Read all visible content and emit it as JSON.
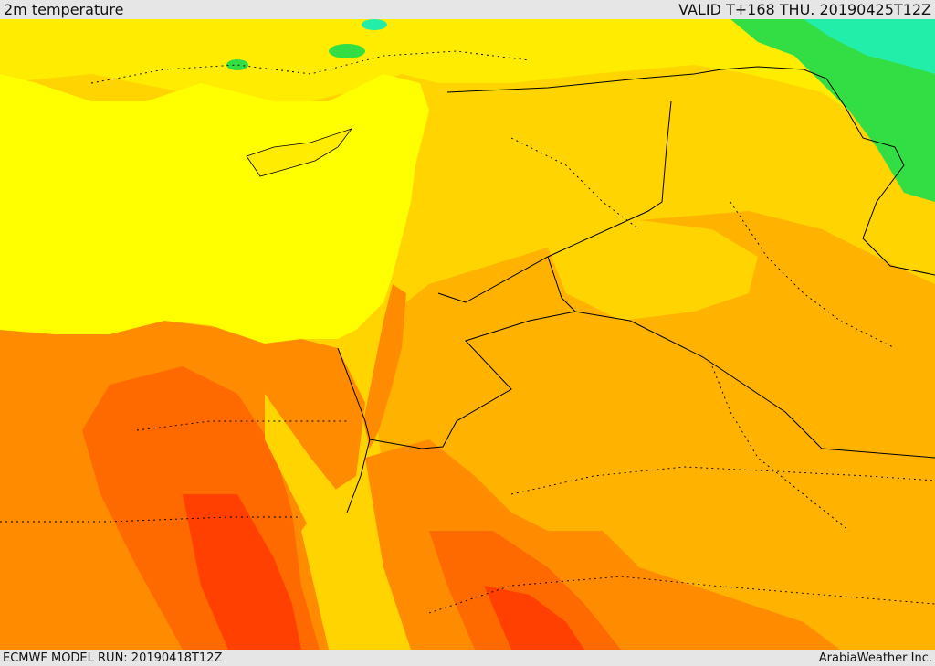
{
  "header": {
    "title": "2m temperature",
    "valid": "VALID T+168 THU. 20190425T12Z"
  },
  "footer": {
    "run": "ECMWF MODEL RUN: 20190418T12Z",
    "credit": "ArabiaWeather Inc."
  },
  "palette": {
    "sea_yellow": "#ffff00",
    "light_yellow": "#ffec00",
    "gold": "#ffd400",
    "light_orange": "#ffb200",
    "orange": "#ff8c00",
    "dark_orange": "#ff6a00",
    "red": "#ff4000",
    "green": "#33dd44",
    "teal": "#22eeaa",
    "border": "#000000"
  }
}
